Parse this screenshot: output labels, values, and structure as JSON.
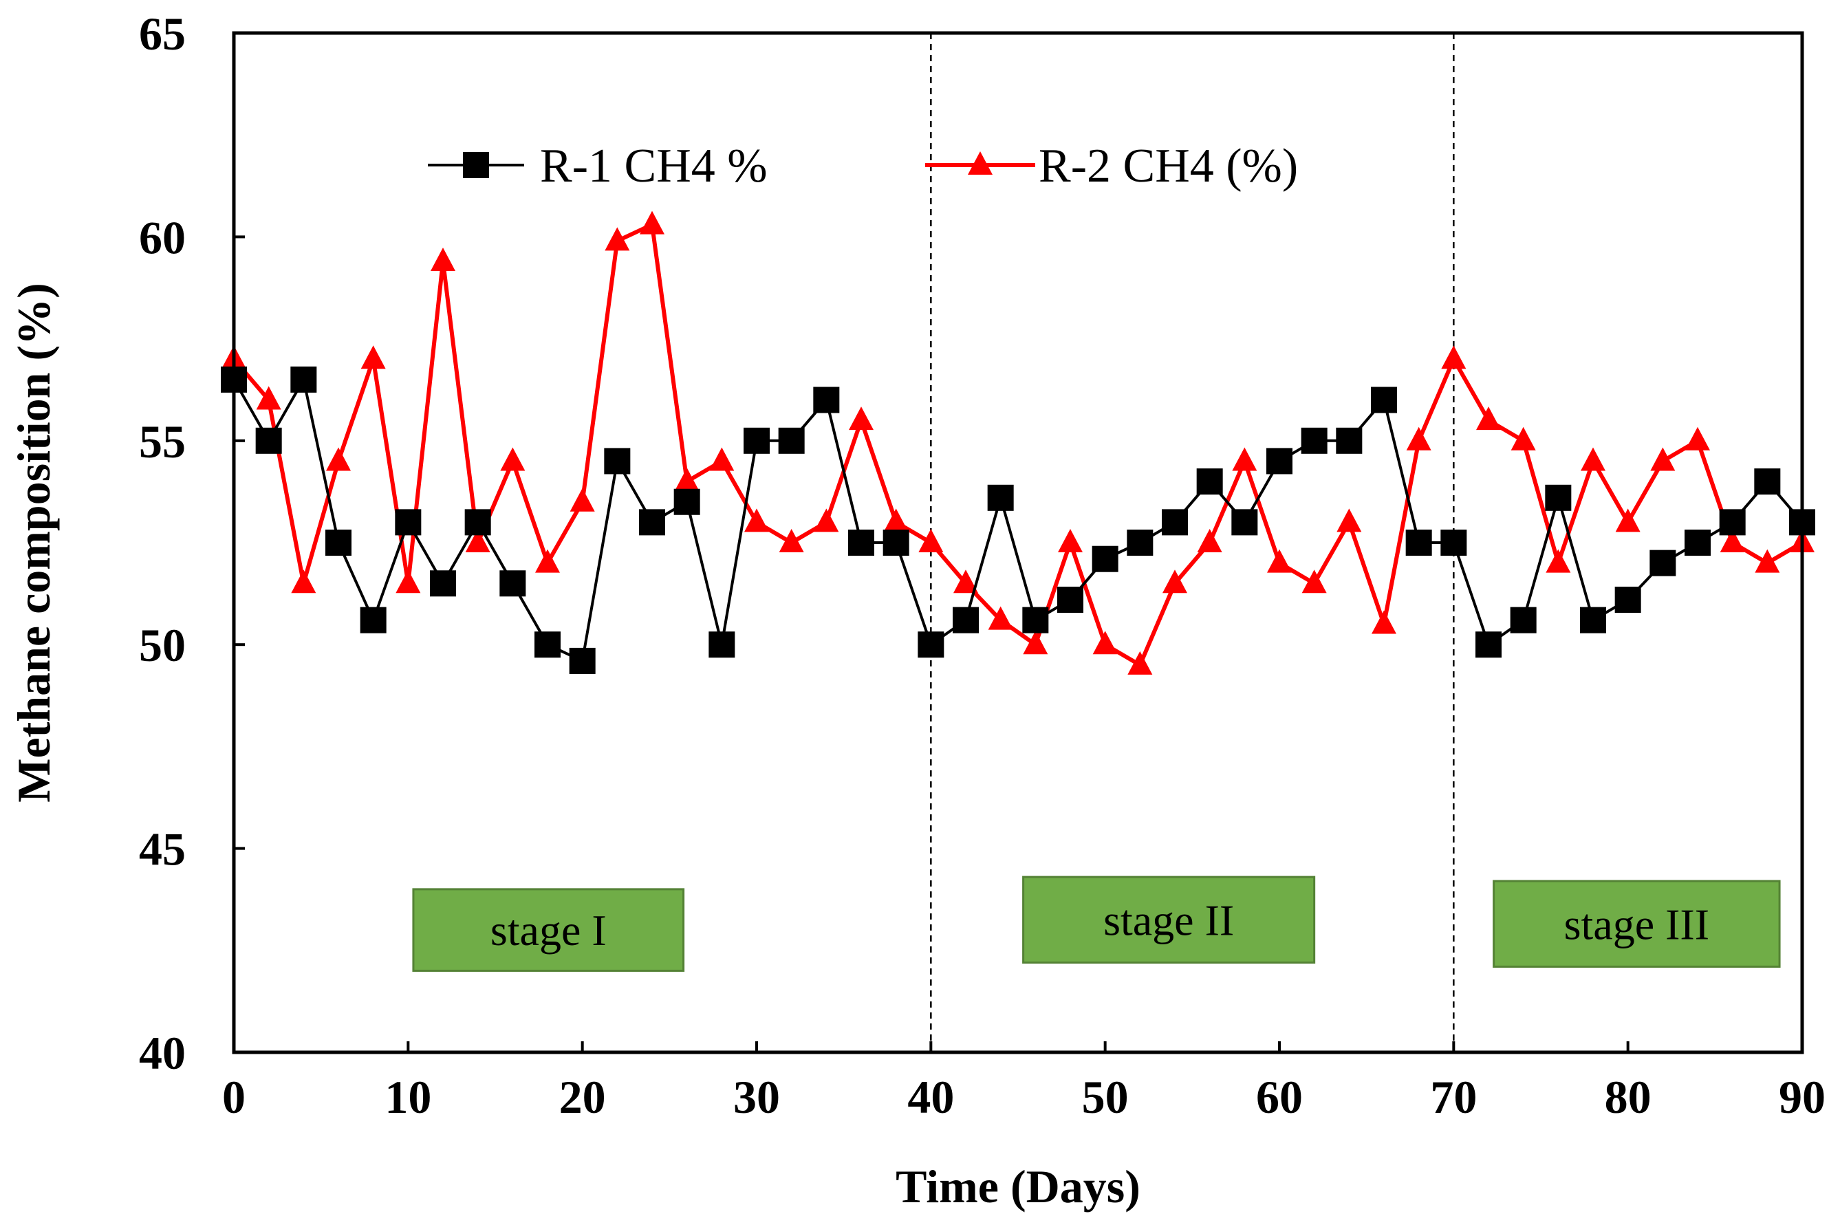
{
  "chart_data": {
    "type": "line",
    "xlabel": "Time (Days)",
    "ylabel": "Methane composition (%)",
    "xlim": [
      0,
      90
    ],
    "ylim": [
      40,
      65
    ],
    "xticks": [
      0,
      10,
      20,
      30,
      40,
      50,
      60,
      70,
      80,
      90
    ],
    "yticks": [
      40,
      45,
      50,
      55,
      60,
      65
    ],
    "grid": false,
    "legend_position": "top-center",
    "series": [
      {
        "name": "R-1 CH4 %",
        "color": "#000000",
        "marker": "square",
        "x": [
          0,
          2,
          4,
          6,
          8,
          10,
          12,
          14,
          16,
          18,
          20,
          22,
          24,
          26,
          28,
          30,
          32,
          34,
          36,
          38,
          40,
          42,
          44,
          46,
          48,
          50,
          52,
          54,
          56,
          58,
          60,
          62,
          64,
          66,
          68,
          70,
          72,
          74,
          76,
          78,
          80,
          82,
          84,
          86,
          88,
          90
        ],
        "values": [
          56.5,
          55.0,
          56.5,
          52.5,
          50.6,
          53.0,
          51.5,
          53.0,
          51.5,
          50.0,
          49.6,
          54.5,
          53.0,
          53.5,
          50.0,
          55.0,
          55.0,
          56.0,
          52.5,
          52.5,
          50.0,
          50.6,
          53.6,
          50.6,
          51.1,
          52.1,
          52.5,
          53.0,
          54.0,
          53.0,
          54.5,
          55.0,
          55.0,
          56.0,
          52.5,
          52.5,
          50.0,
          50.6,
          53.6,
          50.6,
          51.1,
          52.0,
          52.5,
          53.0,
          54.0,
          53.0
        ]
      },
      {
        "name": "R-2 CH4 (%)",
        "color": "#ff0000",
        "marker": "triangle",
        "x": [
          0,
          2,
          4,
          6,
          8,
          10,
          12,
          14,
          16,
          18,
          20,
          22,
          24,
          26,
          28,
          30,
          32,
          34,
          36,
          38,
          40,
          42,
          44,
          46,
          48,
          50,
          52,
          54,
          56,
          58,
          60,
          62,
          64,
          66,
          68,
          70,
          72,
          74,
          76,
          78,
          80,
          82,
          84,
          86,
          88,
          90
        ],
        "values": [
          57.0,
          56.0,
          51.5,
          54.5,
          57.0,
          51.5,
          59.4,
          52.5,
          54.5,
          52.0,
          53.5,
          59.9,
          60.3,
          54.0,
          54.5,
          53.0,
          52.5,
          53.0,
          55.5,
          53.0,
          52.5,
          51.5,
          50.6,
          50.0,
          52.5,
          50.0,
          49.5,
          51.5,
          52.5,
          54.5,
          52.0,
          51.5,
          53.0,
          50.5,
          55.0,
          57.0,
          55.5,
          55.0,
          52.0,
          54.5,
          53.0,
          54.5,
          55.0,
          52.5,
          52.0,
          52.5
        ]
      }
    ],
    "stage_dividers": [
      40,
      70
    ],
    "stage_labels": [
      {
        "label": "stage I",
        "x_range": [
          10.3,
          25.8
        ],
        "y_range": [
          42.0,
          44.0
        ]
      },
      {
        "label": "stage II",
        "x_range": [
          45.3,
          62.0
        ],
        "y_range": [
          42.2,
          44.3
        ]
      },
      {
        "label": "stage III",
        "x_range": [
          72.3,
          88.7
        ],
        "y_range": [
          42.1,
          44.2
        ]
      }
    ]
  },
  "colors": {
    "stage_box": "#70ad47",
    "stage_box_border": "#548235"
  }
}
